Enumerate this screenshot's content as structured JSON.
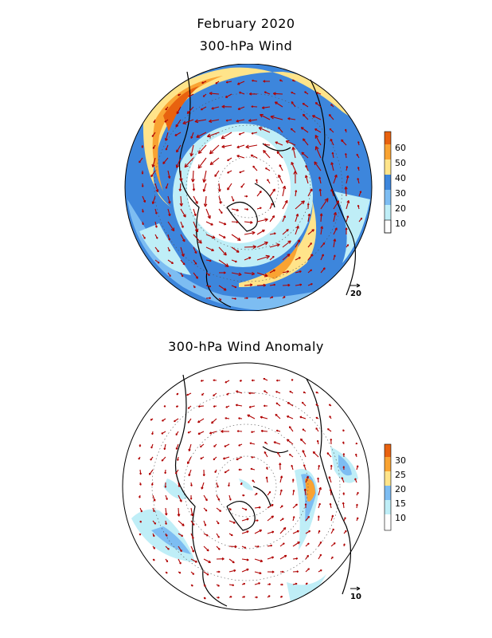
{
  "title": "February 2020",
  "panels": [
    {
      "id": "top",
      "subtitle": "300-hPa Wind",
      "colorbar": {
        "ticks": [
          "10",
          "20",
          "30",
          "40",
          "50",
          "60"
        ],
        "colors": [
          "#ffffff",
          "#bfeef7",
          "#7dbdf2",
          "#3d86dc",
          "#ffe48a",
          "#f9a332",
          "#e8620f"
        ]
      },
      "reference_vector": "20"
    },
    {
      "id": "bottom",
      "subtitle": "300-hPa Wind Anomaly",
      "colorbar": {
        "ticks": [
          "10",
          "15",
          "20",
          "25",
          "30"
        ],
        "colors": [
          "#ffffff",
          "#bfeef7",
          "#7dbdf2",
          "#ffe48a",
          "#f9a332",
          "#e8620f"
        ]
      },
      "reference_vector": "10"
    }
  ],
  "style": {
    "arrow_color": "#b00000",
    "coast_color": "#000000"
  }
}
